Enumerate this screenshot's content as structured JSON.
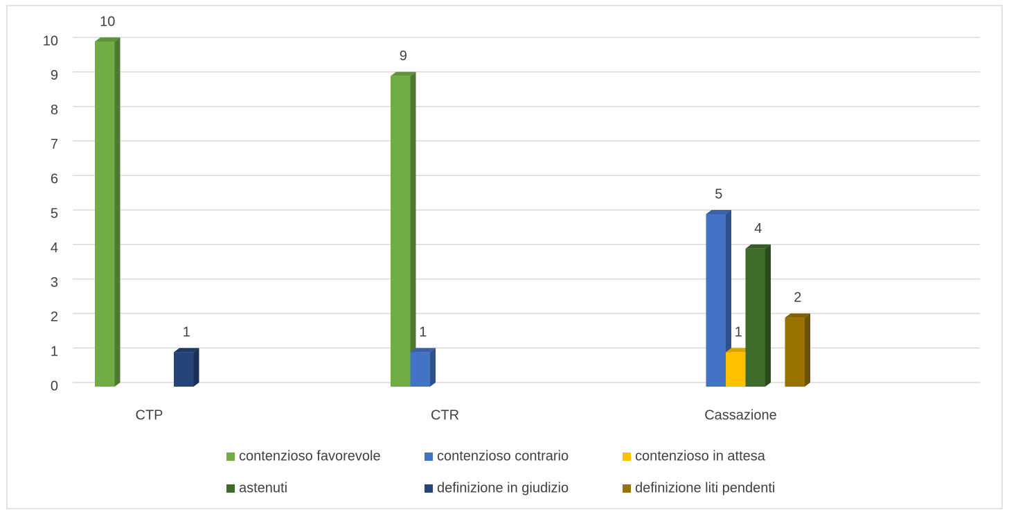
{
  "chart_data": {
    "type": "bar",
    "categories": [
      "CTP",
      "CTR",
      "Cassazione"
    ],
    "series": [
      {
        "name": "contenzioso favorevole",
        "color": "#70ad47",
        "values": [
          10,
          9,
          null
        ]
      },
      {
        "name": "contenzioso contrario",
        "color": "#4472c4",
        "values": [
          null,
          1,
          5
        ]
      },
      {
        "name": "contenzioso in attesa",
        "color": "#ffc000",
        "values": [
          null,
          null,
          1
        ]
      },
      {
        "name": "astenuti",
        "color": "#3f6b2a",
        "values": [
          null,
          null,
          4
        ]
      },
      {
        "name": "definizione in giudizio",
        "color": "#264478",
        "values": [
          1,
          null,
          null
        ]
      },
      {
        "name": "definizione liti pendenti",
        "color": "#997300",
        "values": [
          null,
          null,
          2
        ]
      }
    ],
    "ylim": [
      0,
      10
    ],
    "yticks": [
      0,
      1,
      2,
      3,
      4,
      5,
      6,
      7,
      8,
      9,
      10
    ],
    "grid": true,
    "legend": "bottom"
  }
}
